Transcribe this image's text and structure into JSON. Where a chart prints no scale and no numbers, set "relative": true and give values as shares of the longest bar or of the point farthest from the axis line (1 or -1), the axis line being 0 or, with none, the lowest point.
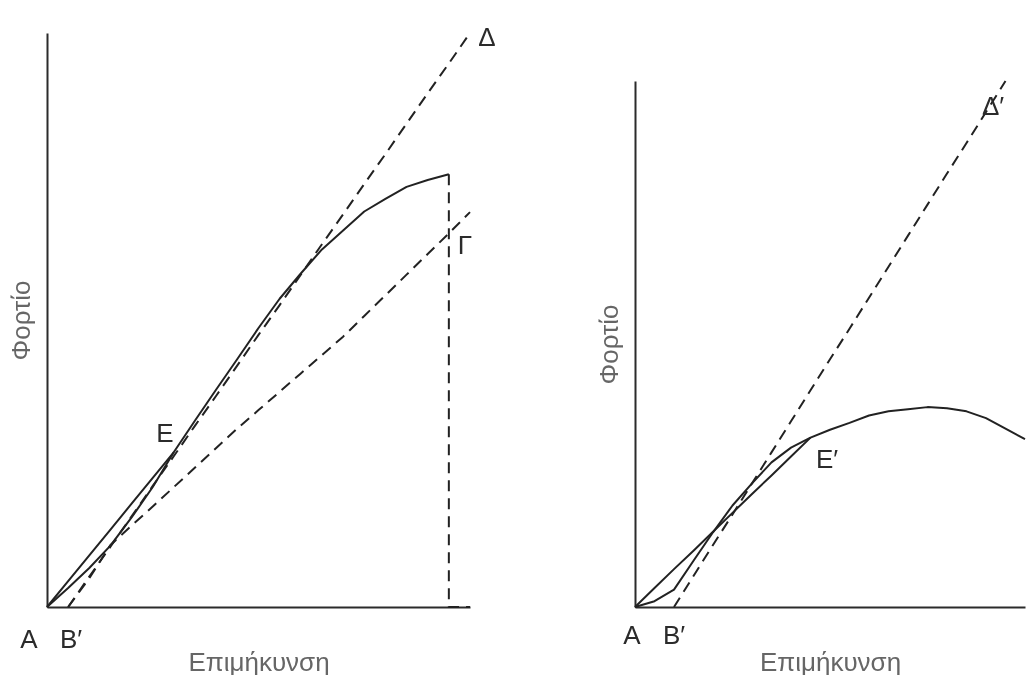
{
  "chart_data": [
    {
      "type": "line",
      "relative": true,
      "xlabel": "Επιμήκυνση",
      "ylabel": "Φορτίο",
      "categories": [
        null,
        null,
        null,
        null,
        null,
        null,
        null,
        null,
        null,
        null,
        null,
        null,
        null,
        null,
        null,
        null,
        null,
        null,
        null,
        null,
        null
      ],
      "series": [
        {
          "color": "#222222",
          "line_style": "solid",
          "values": [
            0,
            0.033,
            0.068,
            0.107,
            0.156,
            0.209,
            0.27,
            0.325,
            0.379,
            0.432,
            0.486,
            0.537,
            0.581,
            0.623,
            0.656,
            0.689,
            0.711,
            0.732,
            0.744,
            0.754,
            null
          ]
        },
        {
          "color": "#222222",
          "line_style": "solid",
          "values": [
            0,
            0.045,
            0.09,
            0.135,
            0.18,
            0.225,
            0.27,
            null,
            null,
            null,
            null,
            null,
            null,
            null,
            null,
            null,
            null,
            null,
            null,
            null,
            null
          ]
        },
        {
          "color": "#222222",
          "line_style": "dashed",
          "values": [
            null,
            0,
            0.053,
            0.105,
            0.158,
            0.211,
            0.263,
            0.316,
            0.368,
            0.421,
            0.474,
            0.526,
            0.579,
            0.632,
            0.684,
            0.737,
            0.789,
            0.842,
            0.895,
            0.947,
            1
          ]
        },
        {
          "color": "#222222",
          "line_style": "dashed",
          "values": [
            null,
            0,
            0.05,
            0.108,
            0.142,
            0.175,
            0.209,
            0.243,
            0.277,
            0.311,
            0.343,
            0.375,
            0.407,
            0.439,
            0.471,
            0.507,
            0.543,
            0.579,
            0.615,
            0.651,
            0.688
          ]
        },
        {
          "type": "step",
          "color": "#222222",
          "line_style": "dashed",
          "values": [
            null,
            null,
            null,
            null,
            null,
            null,
            null,
            null,
            null,
            null,
            null,
            null,
            null,
            null,
            null,
            null,
            null,
            null,
            null,
            0.754,
            0
          ]
        }
      ],
      "annotations": [
        "A",
        "B′",
        "E",
        "Γ",
        "Δ"
      ]
    },
    {
      "type": "line",
      "relative": true,
      "xlabel": "Επιμήκυνση",
      "ylabel": "Φορτίο",
      "categories": [
        null,
        null,
        null,
        null,
        null,
        null,
        null,
        null,
        null,
        null,
        null,
        null,
        null,
        null,
        null,
        null,
        null,
        null,
        null,
        null,
        null
      ],
      "series": [
        {
          "color": "#222222",
          "line_style": "solid",
          "values": [
            0,
            0.011,
            0.033,
            0.088,
            0.142,
            0.193,
            0.235,
            0.275,
            0.303,
            0.322,
            0.337,
            0.35,
            0.364,
            0.372,
            0.376,
            0.38,
            0.378,
            0.372,
            0.359,
            0.339,
            0.319
          ]
        },
        {
          "color": "#222222",
          "line_style": "solid",
          "values": [
            0,
            0.036,
            0.072,
            0.107,
            0.143,
            0.179,
            0.215,
            0.25,
            0.286,
            0.322,
            null,
            null,
            null,
            null,
            null,
            null,
            null,
            null,
            null,
            null,
            null
          ]
        },
        {
          "color": "#222222",
          "line_style": "dashed",
          "values": [
            null,
            null,
            0,
            0.059,
            0.118,
            0.176,
            0.235,
            0.294,
            0.353,
            0.412,
            0.471,
            0.529,
            0.588,
            0.647,
            0.706,
            0.765,
            0.824,
            0.882,
            0.941,
            1,
            null
          ]
        }
      ],
      "annotations": [
        "A",
        "B′",
        "E′",
        "Δ′"
      ]
    }
  ]
}
